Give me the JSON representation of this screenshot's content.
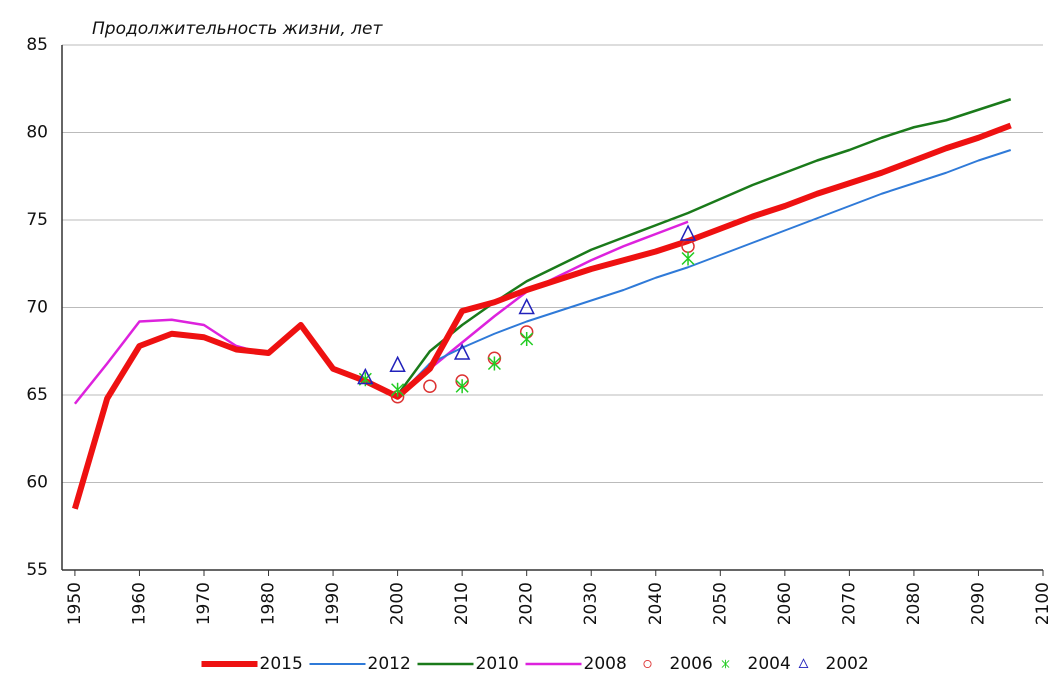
{
  "chart_data": {
    "type": "line",
    "title": "Продолжительность жизни, лет",
    "xlim": [
      1948,
      2100
    ],
    "xticks": [
      1950,
      1960,
      1970,
      1980,
      1990,
      2000,
      2010,
      2020,
      2030,
      2040,
      2050,
      2060,
      2070,
      2080,
      2090,
      2100
    ],
    "ylim": [
      55,
      85
    ],
    "yticks": [
      55,
      60,
      65,
      70,
      75,
      80,
      85
    ],
    "grid": true,
    "legend": "bottom",
    "series": [
      {
        "name": "2015",
        "color": "#ee1111",
        "style": "line",
        "line_width": 6,
        "x": [
          1950,
          1955,
          1960,
          1965,
          1970,
          1975,
          1980,
          1985,
          1990,
          1995,
          2000,
          2005,
          2010,
          2015,
          2020,
          2025,
          2030,
          2035,
          2040,
          2045,
          2050,
          2055,
          2060,
          2065,
          2070,
          2075,
          2080,
          2085,
          2090,
          2095
        ],
        "values": [
          58.5,
          64.8,
          67.8,
          68.5,
          68.3,
          67.6,
          67.4,
          69.0,
          66.5,
          65.8,
          64.9,
          66.5,
          69.8,
          70.3,
          71.0,
          71.6,
          72.2,
          72.7,
          73.2,
          73.8,
          74.5,
          75.2,
          75.8,
          76.5,
          77.1,
          77.7,
          78.4,
          79.1,
          79.7,
          80.4
        ]
      },
      {
        "name": "2012",
        "color": "#2f7ad8",
        "style": "line",
        "line_width": 2,
        "x": [
          1950,
          1955,
          1960,
          1965,
          1970,
          1975,
          1980,
          1985,
          1990,
          1995,
          2000,
          2005,
          2010,
          2015,
          2020,
          2025,
          2030,
          2035,
          2040,
          2045,
          2050,
          2055,
          2060,
          2065,
          2070,
          2075,
          2080,
          2085,
          2090,
          2095
        ],
        "values": [
          58.5,
          64.8,
          67.8,
          68.5,
          68.3,
          67.6,
          67.4,
          69.0,
          66.5,
          65.8,
          64.9,
          66.8,
          67.7,
          68.5,
          69.2,
          69.8,
          70.4,
          71.0,
          71.7,
          72.3,
          73.0,
          73.7,
          74.4,
          75.1,
          75.8,
          76.5,
          77.1,
          77.7,
          78.4,
          79.0
        ]
      },
      {
        "name": "2010",
        "color": "#1a7a1a",
        "style": "line",
        "line_width": 2.5,
        "x": [
          2000,
          2005,
          2010,
          2015,
          2020,
          2025,
          2030,
          2035,
          2040,
          2045,
          2050,
          2055,
          2060,
          2065,
          2070,
          2075,
          2080,
          2085,
          2090,
          2095
        ],
        "values": [
          65.0,
          67.5,
          69.0,
          70.3,
          71.5,
          72.4,
          73.3,
          74.0,
          74.7,
          75.4,
          76.2,
          77.0,
          77.7,
          78.4,
          79.0,
          79.7,
          80.3,
          80.7,
          81.3,
          81.9
        ]
      },
      {
        "name": "2008",
        "color": "#dd22dd",
        "style": "line",
        "line_width": 2.5,
        "x": [
          1950,
          1955,
          1960,
          1965,
          1970,
          1975,
          1980,
          1985,
          1990,
          1995,
          2000,
          2005,
          2010,
          2015,
          2020,
          2025,
          2030,
          2035,
          2040,
          2045
        ],
        "values": [
          64.5,
          66.8,
          69.2,
          69.3,
          69.0,
          67.8,
          67.3,
          69.1,
          66.4,
          65.8,
          65.0,
          66.5,
          68.0,
          69.5,
          70.9,
          71.8,
          72.7,
          73.5,
          74.2,
          74.9
        ]
      },
      {
        "name": "2006",
        "color": "#dd3333",
        "style": "marker",
        "marker": "circle",
        "x": [
          2000,
          2005,
          2010,
          2015,
          2020,
          2045
        ],
        "values": [
          64.9,
          65.5,
          65.8,
          67.1,
          68.6,
          73.5
        ]
      },
      {
        "name": "2004",
        "color": "#22cc22",
        "style": "marker",
        "marker": "star",
        "x": [
          1995,
          2000,
          2010,
          2015,
          2020,
          2045
        ],
        "values": [
          65.9,
          65.3,
          65.5,
          66.8,
          68.2,
          72.8
        ]
      },
      {
        "name": "2002",
        "color": "#2222bb",
        "style": "marker",
        "marker": "triangle",
        "x": [
          1995,
          2000,
          2010,
          2020,
          2045
        ],
        "values": [
          66.0,
          66.7,
          67.4,
          70.0,
          74.2
        ]
      }
    ]
  }
}
